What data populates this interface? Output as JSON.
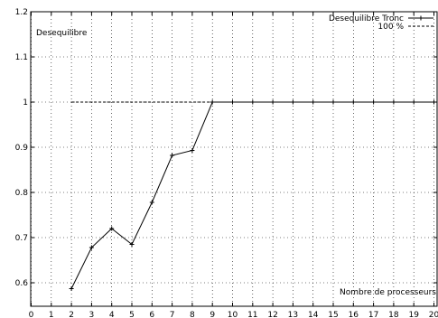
{
  "chart_data": {
    "type": "line",
    "title": "",
    "xlabel": "Nombre de processeurs",
    "ylabel": "",
    "annotation": "Desequilibre",
    "xlim": [
      0,
      20
    ],
    "ylim": [
      0.55,
      1.2
    ],
    "x_ticks": [
      0,
      1,
      2,
      3,
      4,
      5,
      6,
      7,
      8,
      9,
      10,
      11,
      12,
      13,
      14,
      15,
      16,
      17,
      18,
      19,
      20
    ],
    "y_ticks": [
      0.6,
      0.7,
      0.8,
      0.9,
      1,
      1.1,
      1.2
    ],
    "y_tick_labels": [
      "0.6",
      "0.7",
      "0.8",
      "0.9",
      "1",
      "1.1",
      "1.2"
    ],
    "grid": true,
    "legend_position": "top-right",
    "series": [
      {
        "name": "Desequilibre Tronc",
        "style": "solid-with-markers",
        "color": "#000000",
        "x": [
          2,
          3,
          4,
          5,
          6,
          7,
          8,
          9,
          10,
          11,
          12,
          13,
          14,
          15,
          16,
          17,
          18,
          19,
          20
        ],
        "y": [
          0.587,
          0.678,
          0.72,
          0.685,
          0.778,
          0.882,
          0.893,
          1.0,
          1.0,
          1.0,
          1.0,
          1.0,
          1.0,
          1.0,
          1.0,
          1.0,
          1.0,
          1.0,
          1.0
        ]
      },
      {
        "name": "100 %",
        "style": "dashed",
        "color": "#000000",
        "x": [
          2,
          20
        ],
        "y": [
          1.0,
          1.0
        ]
      }
    ]
  }
}
